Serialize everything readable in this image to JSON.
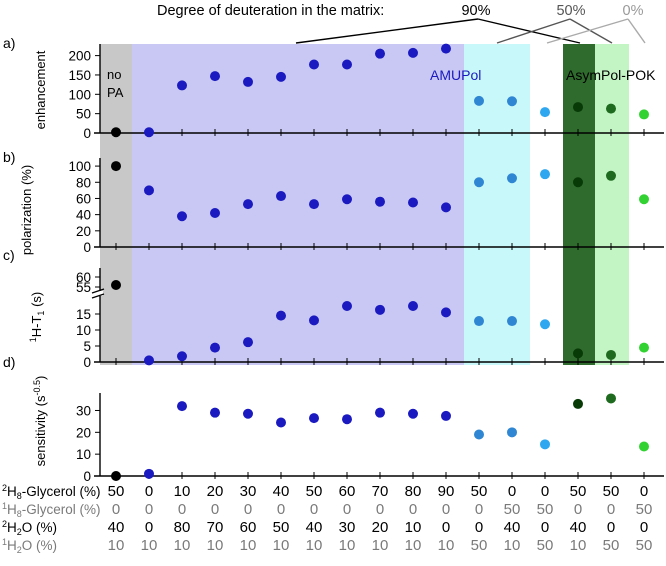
{
  "header": {
    "label": "Degree of deuteration in the matrix:",
    "levels": [
      "90%",
      "50%",
      "0%"
    ]
  },
  "region_labels": {
    "no_pa": [
      "no",
      "PA"
    ],
    "amupol": "AMUPol",
    "asympol": "AsymPol-POK"
  },
  "colors": {
    "grey_band": "#c8c8c8",
    "amupol_band": "#c9c8f4",
    "cyan_band": "#c8f8fa",
    "dark_green_band": "#2f6b2c",
    "light_green_band": "#c2f5c3",
    "black_point": "#000000",
    "blue_point": "#1a1ac0",
    "mid_blue_point": "#2f86d2",
    "light_blue_point": "#2ea6f0",
    "dark_green_point": "#073a07",
    "green_point": "#1e6a1e",
    "light_green_point": "#33d233",
    "text_dark": "#000000",
    "text_grey": "#7a7a7a"
  },
  "columns": [
    "col01",
    "col02",
    "col03",
    "col04",
    "col05",
    "col06",
    "col07",
    "col08",
    "col09",
    "col10",
    "col11",
    "col12",
    "col13",
    "col14",
    "col15",
    "col16",
    "col17"
  ],
  "chart_data": [
    {
      "type": "scatter",
      "panel": "a)",
      "ylabel": "enhancement",
      "ylim": [
        0,
        230
      ],
      "yticks": [
        "0",
        "50",
        "100",
        "150",
        "200"
      ],
      "values": [
        2,
        2,
        123,
        147,
        132,
        145,
        177,
        177,
        205,
        207,
        218,
        83,
        82,
        54,
        67,
        63,
        48
      ]
    },
    {
      "type": "scatter",
      "panel": "b)",
      "ylabel": "polarization (%)",
      "ylim": [
        0,
        110
      ],
      "yticks": [
        "0",
        "20",
        "40",
        "60",
        "80",
        "100"
      ],
      "values": [
        100,
        70,
        38,
        42,
        53,
        63,
        53,
        59,
        56,
        55,
        49,
        80,
        85,
        90,
        80,
        88,
        59
      ]
    },
    {
      "type": "scatter",
      "panel": "c)",
      "ylabel": "1H-T1 (s)",
      "axis_break": true,
      "ylim_lower": [
        0,
        20
      ],
      "yticks_lower": [
        "0",
        "5",
        "10",
        "15"
      ],
      "yticks_upper": [
        "55",
        "60"
      ],
      "values": [
        56,
        0.5,
        1.8,
        4.5,
        6.2,
        14.5,
        13,
        17.5,
        16.3,
        17.5,
        15.5,
        12.8,
        12.8,
        11.8,
        2.7,
        2.2,
        4.5
      ]
    },
    {
      "type": "scatter",
      "panel": "d)",
      "ylabel": "sensitivity (s-0.5)",
      "ylim": [
        0,
        38
      ],
      "yticks": [
        "0",
        "10",
        "20",
        "30"
      ],
      "values": [
        0,
        1,
        32,
        29,
        28.5,
        24.5,
        26.5,
        26,
        29,
        28.5,
        27.5,
        19,
        20,
        14.5,
        33,
        35.5,
        13.5
      ]
    },
    {
      "type": "table",
      "row_headers": [
        "2H8-Glycerol (%)",
        "1H8-Glycerol (%)",
        "2H2O (%)",
        "1H2O (%)"
      ],
      "rows": [
        [
          "50",
          "0",
          "10",
          "20",
          "30",
          "40",
          "50",
          "60",
          "70",
          "80",
          "90",
          "50",
          "0",
          "0",
          "50",
          "50",
          "0"
        ],
        [
          "0",
          "0",
          "0",
          "0",
          "0",
          "0",
          "0",
          "0",
          "0",
          "0",
          "0",
          "0",
          "50",
          "50",
          "0",
          "0",
          "50"
        ],
        [
          "40",
          "0",
          "80",
          "70",
          "60",
          "50",
          "40",
          "30",
          "20",
          "10",
          "0",
          "0",
          "40",
          "0",
          "40",
          "0",
          "0"
        ],
        [
          "10",
          "10",
          "10",
          "10",
          "10",
          "10",
          "10",
          "10",
          "10",
          "10",
          "10",
          "50",
          "10",
          "50",
          "10",
          "50",
          "50"
        ]
      ]
    }
  ]
}
